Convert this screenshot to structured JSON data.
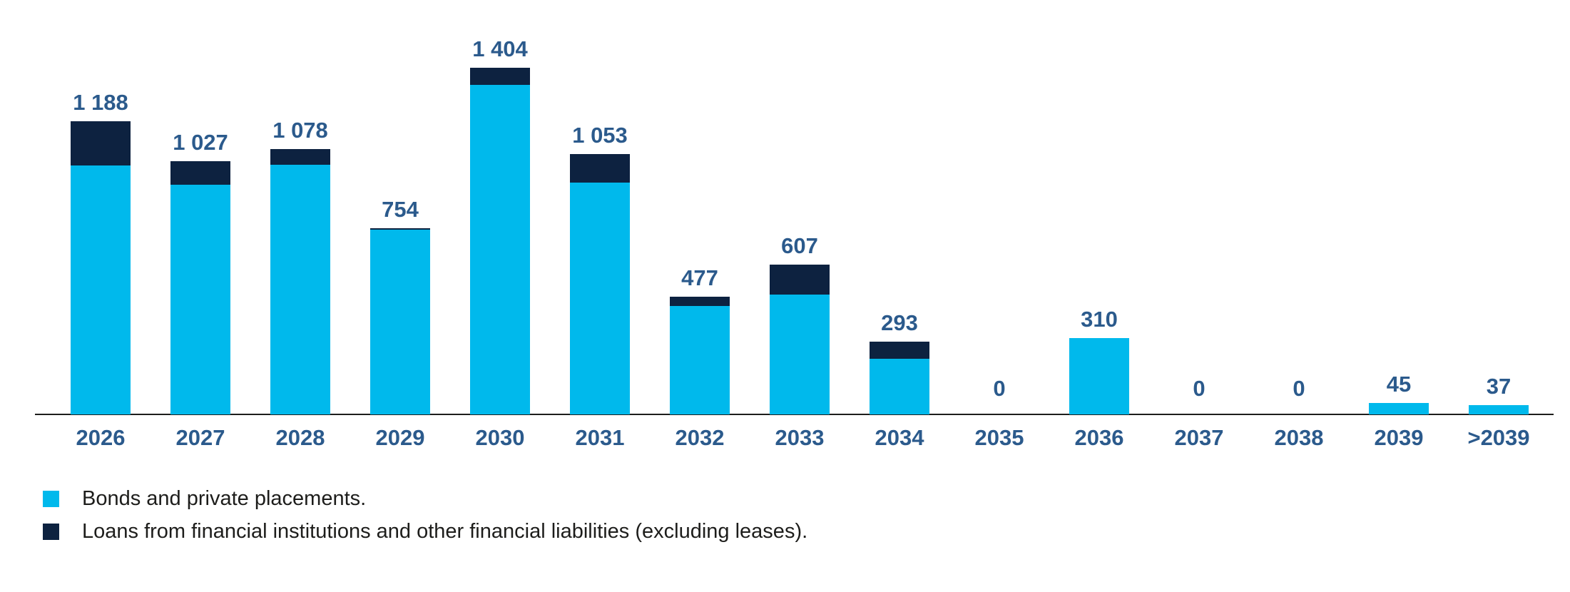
{
  "chart_data": {
    "type": "bar",
    "stacked": true,
    "categories": [
      "2026",
      "2027",
      "2028",
      "2029",
      "2030",
      "2031",
      "2032",
      "2033",
      "2034",
      "2035",
      "2036",
      "2037",
      "2038",
      "2039",
      ">2039"
    ],
    "series": [
      {
        "name": "Bonds and private placements.",
        "color": "#00B9EC",
        "values": [
          1008,
          932,
          1013,
          749,
          1335,
          938,
          439,
          486,
          224,
          0,
          310,
          0,
          0,
          45,
          37
        ]
      },
      {
        "name": "Loans from financial institutions and other financial liabilities (excluding leases).",
        "color": "#0D2240",
        "values": [
          180,
          95,
          65,
          5,
          69,
          115,
          38,
          121,
          69,
          0,
          0,
          0,
          0,
          0,
          0
        ]
      }
    ],
    "totals": [
      1188,
      1027,
      1078,
      754,
      1404,
      1053,
      477,
      607,
      293,
      0,
      310,
      0,
      0,
      45,
      37
    ],
    "total_labels": [
      "1 188",
      "1 027",
      "1 078",
      "754",
      "1 404",
      "1 053",
      "477",
      "607",
      "293",
      "0",
      "310",
      "0",
      "0",
      "45",
      "37"
    ],
    "ylim": [
      0,
      1500
    ],
    "grid": false,
    "legend_position": "bottom-left",
    "value_label_color": "#2B5A8C",
    "axis_label_color": "#2B5A8C",
    "legend_text_color": "#1D1D1B",
    "axis_line_color": "#1D1D1B"
  }
}
